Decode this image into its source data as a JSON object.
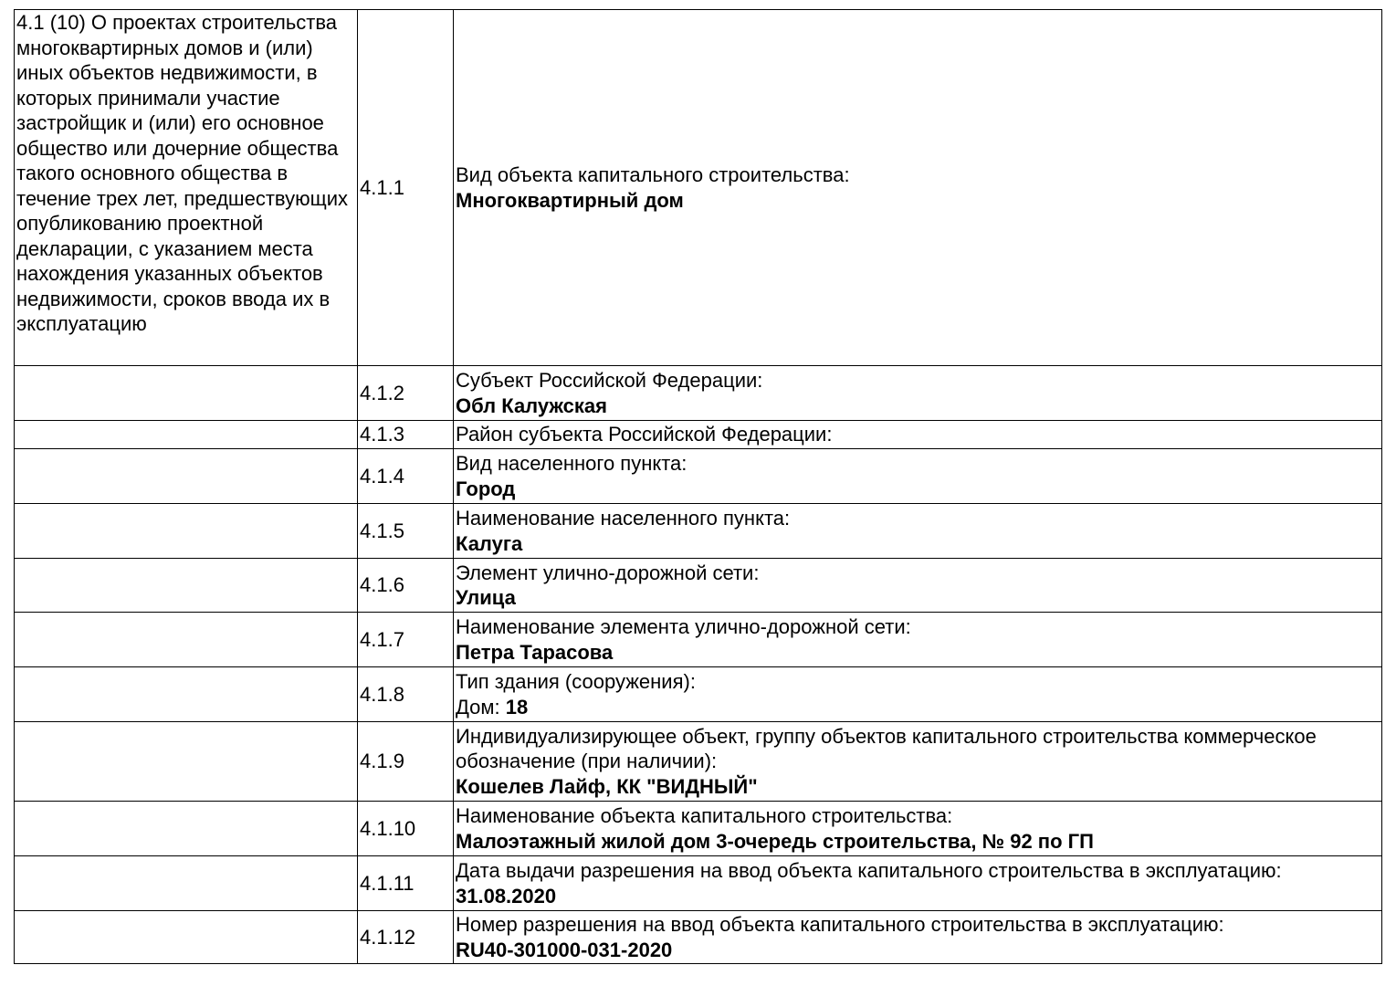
{
  "section_title": "4.1 (10) О проектах строительства многоквартирных домов и (или) иных объектов недвижимости, в которых принимали участие застройщик и (или) его основное общество или дочерние общества такого основного общества в течение трех лет, предшествующих опубликованию проектной декларации, с указанием места нахождения указанных объектов недвижимости, сроков ввода их в эксплуатацию",
  "rows": [
    {
      "num": "4.1.1",
      "label": "Вид объекта капитального строительства:",
      "prefix": "",
      "value": "Многоквартирный дом"
    },
    {
      "num": "4.1.2",
      "label": "Субъект Российской Федерации:",
      "prefix": "",
      "value": "Обл Калужская"
    },
    {
      "num": "4.1.3",
      "label": "Район субъекта Российской Федерации:",
      "prefix": "",
      "value": ""
    },
    {
      "num": "4.1.4",
      "label": "Вид населенного пункта:",
      "prefix": "",
      "value": "Город"
    },
    {
      "num": "4.1.5",
      "label": "Наименование населенного пункта:",
      "prefix": "",
      "value": "Калуга"
    },
    {
      "num": "4.1.6",
      "label": "Элемент улично-дорожной сети:",
      "prefix": "",
      "value": "Улица"
    },
    {
      "num": "4.1.7",
      "label": "Наименование элемента улично-дорожной сети:",
      "prefix": "",
      "value": "Петра Тарасова"
    },
    {
      "num": "4.1.8",
      "label": "Тип здания (сооружения):",
      "prefix": "Дом: ",
      "value": "18"
    },
    {
      "num": "4.1.9",
      "label": "Индивидуализирующее объект, группу объектов капитального строительства коммерческое обозначение (при наличии):",
      "prefix": "",
      "value": "Кошелев Лайф, КК \"ВИДНЫЙ\""
    },
    {
      "num": "4.1.10",
      "label": "Наименование объекта капитального строительства:",
      "prefix": "",
      "value": "Малоэтажный жилой дом 3-очередь строительства, № 92 по ГП"
    },
    {
      "num": "4.1.11",
      "label": "Дата выдачи разрешения на ввод объекта капитального строительства в эксплуатацию:",
      "prefix": "",
      "value": "31.08.2020"
    },
    {
      "num": "4.1.12",
      "label": "Номер разрешения на ввод объекта капитального строительства в эксплуатацию:",
      "prefix": "",
      "value": "RU40-301000-031-2020"
    }
  ]
}
